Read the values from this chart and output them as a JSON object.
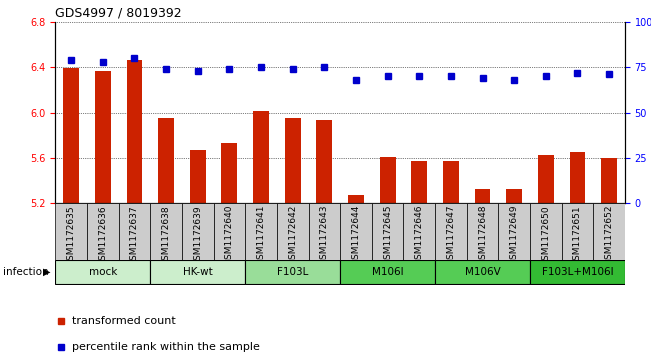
{
  "title": "GDS4997 / 8019392",
  "samples": [
    "GSM1172635",
    "GSM1172636",
    "GSM1172637",
    "GSM1172638",
    "GSM1172639",
    "GSM1172640",
    "GSM1172641",
    "GSM1172642",
    "GSM1172643",
    "GSM1172644",
    "GSM1172645",
    "GSM1172646",
    "GSM1172647",
    "GSM1172648",
    "GSM1172649",
    "GSM1172650",
    "GSM1172651",
    "GSM1172652"
  ],
  "bar_values": [
    6.39,
    6.37,
    6.46,
    5.95,
    5.67,
    5.73,
    6.01,
    5.95,
    5.93,
    5.27,
    5.61,
    5.57,
    5.57,
    5.33,
    5.33,
    5.63,
    5.65,
    5.6
  ],
  "percentile_values": [
    79,
    78,
    80,
    74,
    73,
    74,
    75,
    74,
    75,
    68,
    70,
    70,
    70,
    69,
    68,
    70,
    72,
    71
  ],
  "groups": [
    {
      "label": "mock",
      "indices": [
        0,
        1,
        2
      ],
      "color": "#cceecc"
    },
    {
      "label": "HK-wt",
      "indices": [
        3,
        4,
        5
      ],
      "color": "#cceecc"
    },
    {
      "label": "F103L",
      "indices": [
        6,
        7,
        8
      ],
      "color": "#99dd99"
    },
    {
      "label": "M106I",
      "indices": [
        9,
        10,
        11
      ],
      "color": "#55cc55"
    },
    {
      "label": "M106V",
      "indices": [
        12,
        13,
        14
      ],
      "color": "#55cc55"
    },
    {
      "label": "F103L+M106I",
      "indices": [
        15,
        16,
        17
      ],
      "color": "#33bb33"
    }
  ],
  "ylim_left": [
    5.2,
    6.8
  ],
  "ylim_right": [
    0,
    100
  ],
  "yticks_left": [
    5.2,
    5.6,
    6.0,
    6.4,
    6.8
  ],
  "yticks_right": [
    0,
    25,
    50,
    75,
    100
  ],
  "bar_color": "#cc2200",
  "dot_color": "#0000cc",
  "sample_box_color": "#cccccc",
  "infection_label": "infection",
  "legend_bar_label": "transformed count",
  "legend_dot_label": "percentile rank within the sample"
}
